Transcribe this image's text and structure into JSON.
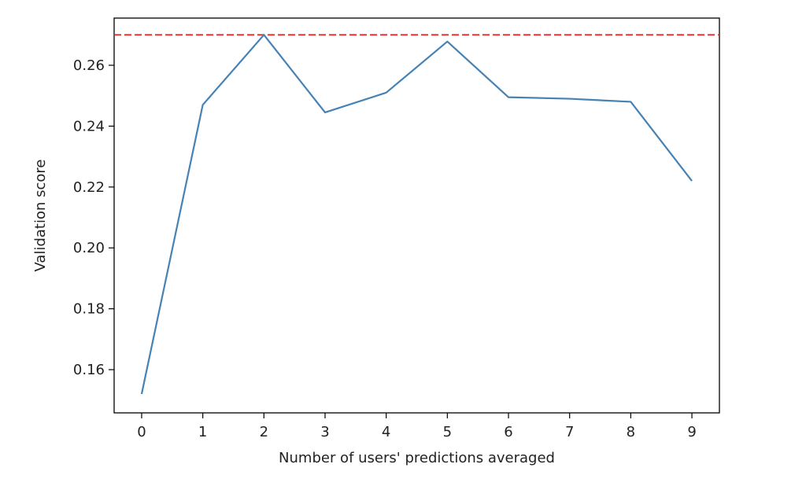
{
  "chart_data": {
    "type": "line",
    "title": "",
    "xlabel": "Number of users' predictions averaged",
    "ylabel": "Validation score",
    "x": [
      0,
      1,
      2,
      3,
      4,
      5,
      6,
      7,
      8,
      9
    ],
    "series": [
      {
        "name": "validation score",
        "color": "#4682b4",
        "values": [
          0.152,
          0.247,
          0.27,
          0.2445,
          0.251,
          0.2678,
          0.2495,
          0.249,
          0.248,
          0.222
        ]
      }
    ],
    "reference_line": {
      "y": 0.27,
      "color": "#e32b2b",
      "style": "dashed"
    },
    "xticks": [
      {
        "value": 0,
        "label": "0"
      },
      {
        "value": 1,
        "label": "1"
      },
      {
        "value": 2,
        "label": "2"
      },
      {
        "value": 3,
        "label": "3"
      },
      {
        "value": 4,
        "label": "4"
      },
      {
        "value": 5,
        "label": "5"
      },
      {
        "value": 6,
        "label": "6"
      },
      {
        "value": 7,
        "label": "7"
      },
      {
        "value": 8,
        "label": "8"
      },
      {
        "value": 9,
        "label": "9"
      }
    ],
    "yticks": [
      {
        "value": 0.16,
        "label": "0.16"
      },
      {
        "value": 0.18,
        "label": "0.18"
      },
      {
        "value": 0.2,
        "label": "0.20"
      },
      {
        "value": 0.22,
        "label": "0.22"
      },
      {
        "value": 0.24,
        "label": "0.24"
      },
      {
        "value": 0.26,
        "label": "0.26"
      }
    ],
    "xlim": [
      -0.45,
      9.45
    ],
    "ylim": [
      0.1458,
      0.2755
    ],
    "grid": false,
    "legend": "none"
  }
}
